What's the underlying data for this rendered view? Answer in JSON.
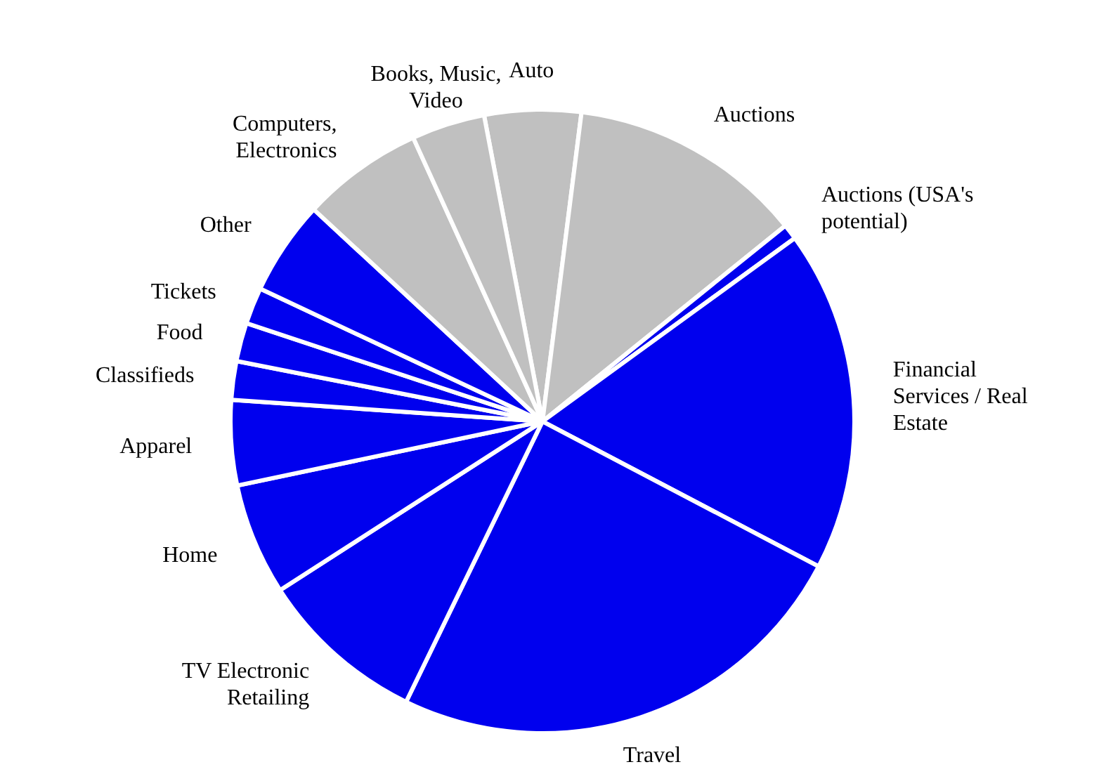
{
  "chart_data": {
    "type": "pie",
    "categories": [
      "Auto",
      "Auctions",
      "Auctions (USA's potential)",
      "Financial Services / Real Estate",
      "Travel",
      "TV Electronic Retailing",
      "Home",
      "Apparel",
      "Classifieds",
      "Food",
      "Tickets",
      "Other",
      "Computers, Electronics",
      "Books, Music, Video"
    ],
    "values": [
      5,
      12.2,
      0.8,
      17.7,
      24.5,
      8.7,
      5.8,
      4.4,
      2,
      2,
      1.9,
      4.9,
      6.3,
      3.8
    ],
    "colors": [
      "#c0c0c0",
      "#c0c0c0",
      "#0000ee",
      "#0000ee",
      "#0000ee",
      "#0000ee",
      "#0000ee",
      "#0000ee",
      "#0000ee",
      "#0000ee",
      "#0000ee",
      "#0000ee",
      "#c0c0c0",
      "#c0c0c0"
    ],
    "legend": false
  }
}
